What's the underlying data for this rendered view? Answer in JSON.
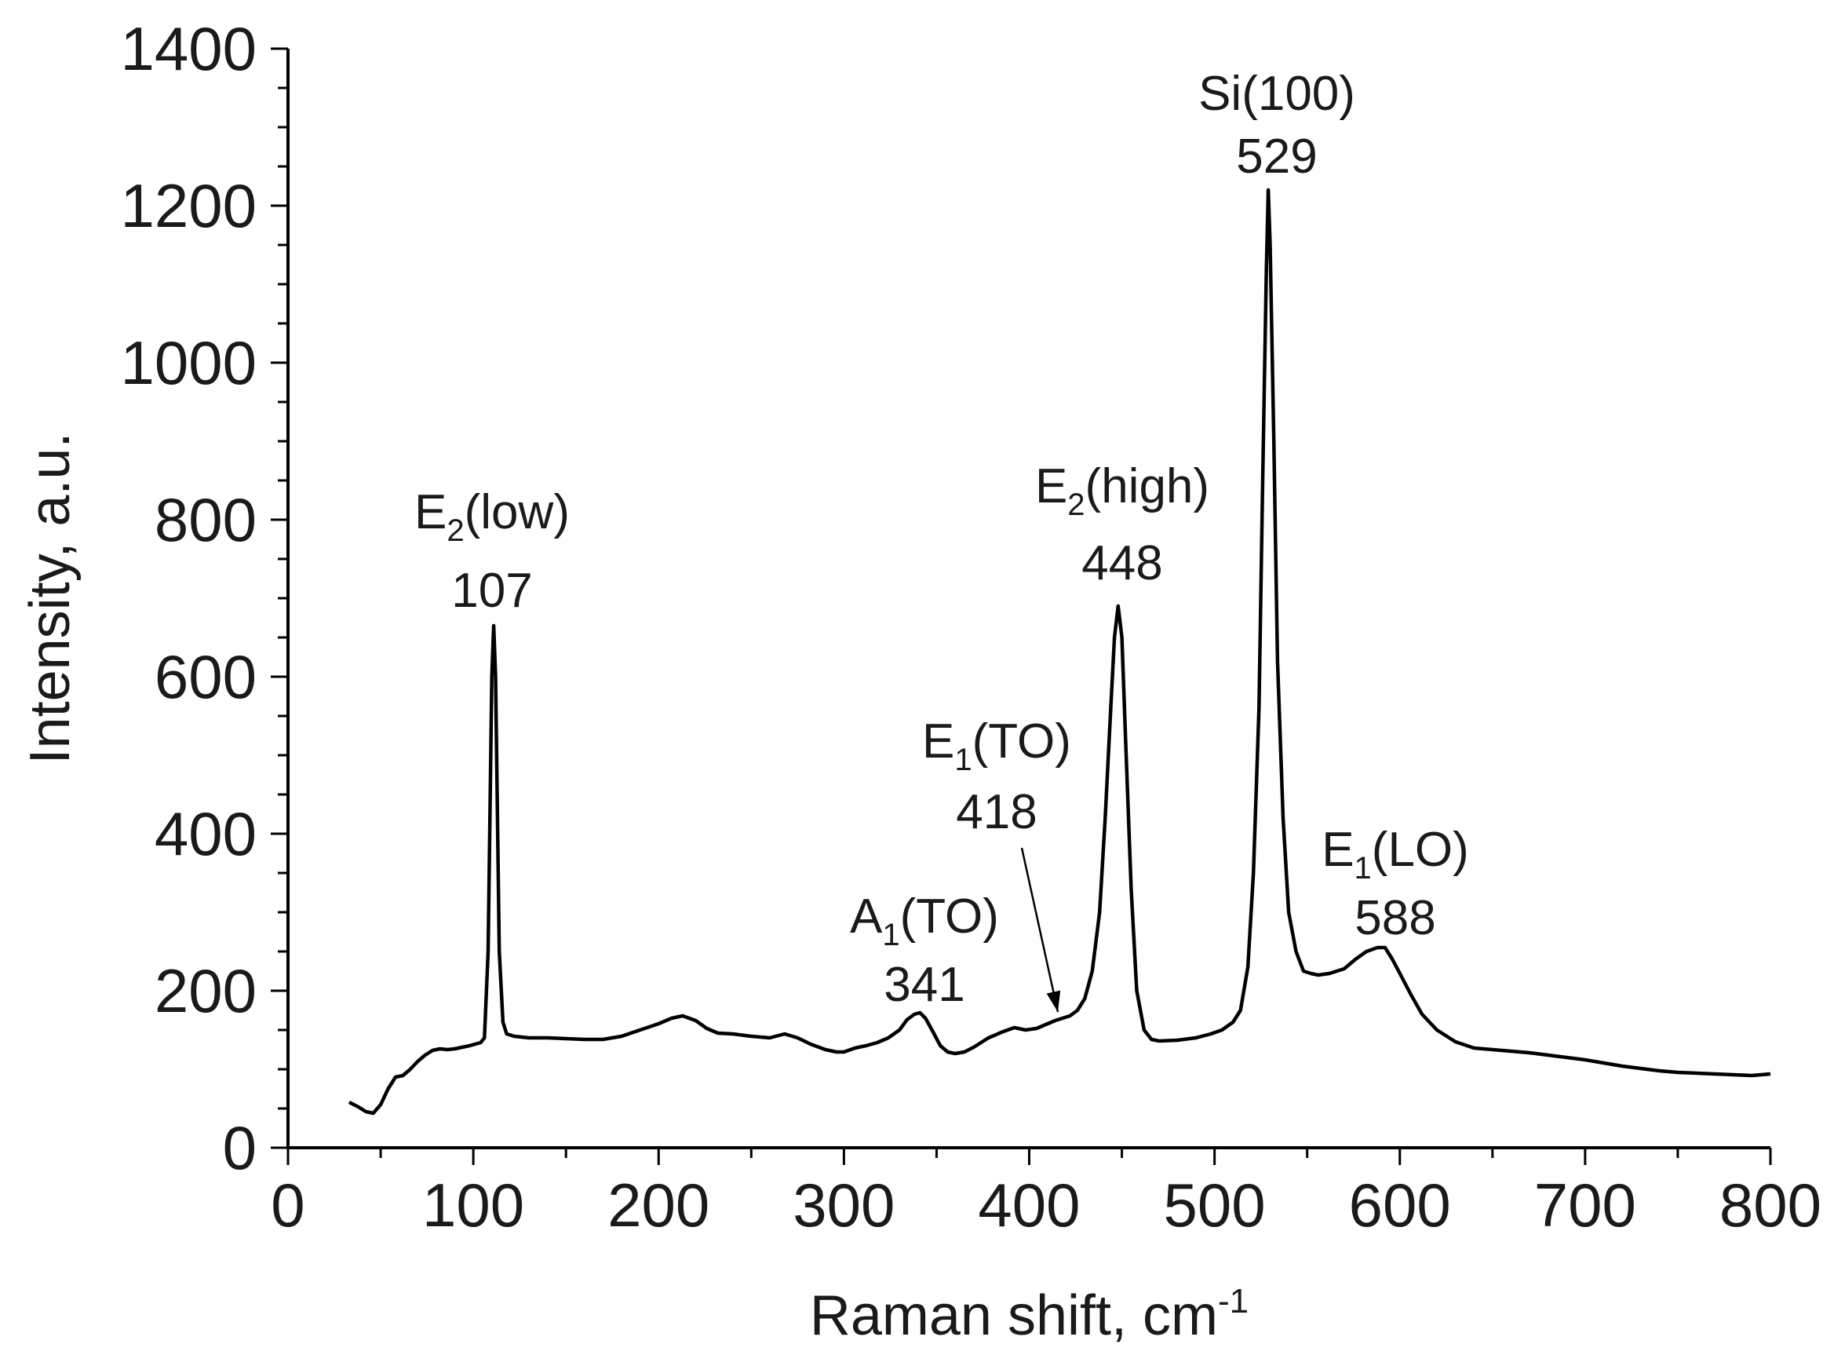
{
  "chart_data": {
    "type": "line",
    "title": "",
    "xlabel": "Raman shift, cm",
    "xlabel_sup": "-1",
    "ylabel": "Intensity, a.u.",
    "xlim": [
      0,
      800
    ],
    "ylim": [
      0,
      1400
    ],
    "x_ticks": [
      "0",
      "100",
      "200",
      "300",
      "400",
      "500",
      "600",
      "700",
      "800"
    ],
    "y_ticks": [
      "0",
      "200",
      "400",
      "600",
      "800",
      "1000",
      "1200",
      "1400"
    ],
    "x_major_step": 100,
    "x_minor_step": 50,
    "y_major_step": 200,
    "y_minor_step": 50,
    "grid": false,
    "legend": "none",
    "line_color": "#000000",
    "series": [
      {
        "x": [
          33,
          38,
          42,
          46,
          50,
          54,
          58,
          62,
          66,
          70,
          74,
          78,
          82,
          86,
          90,
          94,
          98,
          101,
          104,
          106,
          108,
          110,
          111,
          112,
          114,
          116,
          118,
          122,
          130,
          140,
          150,
          160,
          170,
          180,
          190,
          200,
          207,
          213,
          220,
          226,
          232,
          240,
          250,
          260,
          268,
          275,
          282,
          290,
          296,
          300,
          306,
          312,
          318,
          324,
          330,
          334,
          338,
          341,
          344,
          348,
          352,
          356,
          360,
          365,
          370,
          378,
          386,
          392,
          398,
          404,
          410,
          414,
          418,
          422,
          426,
          430,
          434,
          438,
          441,
          444,
          446,
          448,
          450,
          452,
          455,
          458,
          462,
          466,
          470,
          480,
          490,
          498,
          504,
          510,
          514,
          518,
          521,
          524,
          526,
          528,
          529,
          530,
          532,
          534,
          537,
          540,
          544,
          548,
          552,
          556,
          562,
          570,
          576,
          582,
          588,
          592,
          596,
          600,
          606,
          612,
          620,
          630,
          640,
          650,
          660,
          670,
          680,
          690,
          700,
          710,
          720,
          730,
          740,
          750,
          760,
          770,
          780,
          790,
          800
        ],
        "y": [
          58,
          52,
          46,
          44,
          55,
          75,
          90,
          92,
          100,
          110,
          118,
          124,
          126,
          125,
          126,
          128,
          130,
          132,
          134,
          140,
          250,
          600,
          665,
          600,
          250,
          160,
          145,
          142,
          140,
          140,
          139,
          138,
          138,
          142,
          150,
          158,
          165,
          168,
          162,
          152,
          146,
          145,
          142,
          140,
          145,
          140,
          132,
          125,
          122,
          122,
          127,
          130,
          134,
          140,
          150,
          163,
          170,
          172,
          165,
          148,
          130,
          122,
          120,
          122,
          128,
          140,
          148,
          153,
          150,
          152,
          158,
          162,
          165,
          168,
          175,
          190,
          225,
          300,
          420,
          560,
          650,
          690,
          650,
          520,
          330,
          200,
          150,
          138,
          136,
          137,
          140,
          145,
          150,
          160,
          175,
          230,
          350,
          560,
          850,
          1120,
          1220,
          1150,
          900,
          620,
          420,
          300,
          250,
          225,
          222,
          220,
          222,
          228,
          240,
          250,
          255,
          255,
          240,
          222,
          195,
          170,
          150,
          135,
          127,
          125,
          123,
          121,
          118,
          115,
          112,
          108,
          104,
          101,
          98,
          96,
          95,
          94,
          93,
          92,
          94
        ]
      }
    ],
    "annotations": [
      {
        "main": "E",
        "sub": "2",
        "rest": "(low)",
        "value": "107",
        "x": 110
      },
      {
        "main": "A",
        "sub": "1",
        "rest": "(TO)",
        "value": "341",
        "x": 341
      },
      {
        "main": "E",
        "sub": "1",
        "rest": "(TO)",
        "value": "418",
        "x": 418,
        "arrow_to": [
          418,
          165
        ]
      },
      {
        "main": "E",
        "sub": "2",
        "rest": "(high)",
        "value": "448",
        "x": 448
      },
      {
        "main": "Si(100)",
        "sub": "",
        "rest": "",
        "value": "529",
        "x": 529
      },
      {
        "main": "E",
        "sub": "1",
        "rest": "(LO)",
        "value": "588",
        "x": 588
      }
    ]
  }
}
